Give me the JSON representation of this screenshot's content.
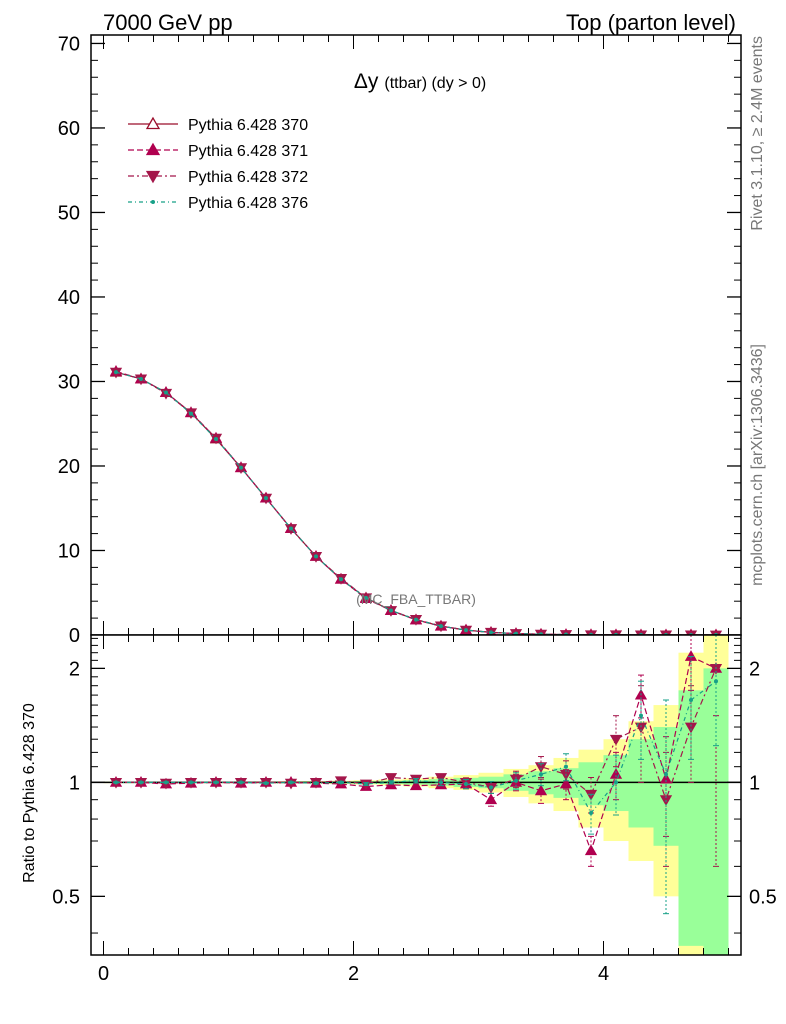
{
  "header": {
    "left": "7000 GeV pp",
    "right": "Top (parton level)"
  },
  "side": {
    "rivet": "Rivet 3.1.10, ≥ 2.4M events",
    "mcplots": "mcplots.cern.ch [arXiv:1306.3436]"
  },
  "plot": {
    "title_main": "Δy",
    "title_sub": "(ttbar) (dy > 0)",
    "watermark": "(MC_FBA_TTBAR)"
  },
  "colors": {
    "s370": "#9b0d2b",
    "s371": "#b0004f",
    "s372": "#a4164a",
    "s376": "#17a088",
    "band_yellow": "#ffff99",
    "band_green": "#99ff99"
  },
  "chart_data": [
    {
      "type": "line",
      "panel": "main",
      "xlim": [
        -0.1,
        5.1
      ],
      "ylim": [
        0,
        71
      ],
      "yticks": [
        0,
        10,
        20,
        30,
        40,
        50,
        60,
        70
      ],
      "ytick_labels": [
        "0",
        "10",
        "20",
        "30",
        "40",
        "50",
        "60",
        "70"
      ],
      "x": [
        0.1,
        0.3,
        0.5,
        0.7,
        0.9,
        1.1,
        1.3,
        1.5,
        1.7,
        1.9,
        2.1,
        2.3,
        2.5,
        2.7,
        2.9,
        3.1,
        3.3,
        3.5,
        3.7,
        3.9,
        4.1,
        4.3,
        4.5,
        4.7,
        4.9
      ],
      "series": [
        {
          "name": "Pythia 6.428 370",
          "marker": "triangle-up-open",
          "dash": "solid",
          "values": [
            31.1,
            30.3,
            28.7,
            26.3,
            23.2,
            19.8,
            16.2,
            12.6,
            9.3,
            6.6,
            4.4,
            2.9,
            1.8,
            1.05,
            0.58,
            0.32,
            0.17,
            0.09,
            0.05,
            0.03,
            0.015,
            0.008,
            0.005,
            0.003,
            0.002
          ]
        },
        {
          "name": "Pythia 6.428 371",
          "marker": "triangle-up-filled",
          "dash": "dashed",
          "values": [
            31.2,
            30.3,
            28.7,
            26.3,
            23.3,
            19.8,
            16.2,
            12.6,
            9.3,
            6.6,
            4.3,
            2.9,
            1.78,
            1.04,
            0.58,
            0.29,
            0.17,
            0.086,
            0.05,
            0.02,
            0.016,
            0.013,
            0.005,
            0.007,
            0.004
          ]
        },
        {
          "name": "Pythia 6.428 372",
          "marker": "triangle-down-filled",
          "dash": "dashdot",
          "values": [
            31.1,
            30.3,
            28.6,
            26.3,
            23.3,
            19.8,
            16.2,
            12.6,
            9.3,
            6.7,
            4.4,
            2.9,
            1.85,
            1.07,
            0.58,
            0.32,
            0.17,
            0.1,
            0.05,
            0.028,
            0.02,
            0.011,
            0.005,
            0.006,
            0.004
          ]
        },
        {
          "name": "Pythia 6.428 376",
          "marker": "dot",
          "dash": "dashdotted",
          "values": [
            31.1,
            30.3,
            28.7,
            26.2,
            23.2,
            19.8,
            16.2,
            12.6,
            9.3,
            6.6,
            4.4,
            2.9,
            1.82,
            1.05,
            0.58,
            0.31,
            0.17,
            0.095,
            0.055,
            0.025,
            0.014,
            0.012,
            0.005,
            0.005,
            0.004
          ]
        }
      ]
    },
    {
      "type": "line",
      "panel": "ratio",
      "ylabel": "Ratio to Pythia 6.428 370",
      "xlim": [
        -0.1,
        5.1
      ],
      "ylim": [
        0.35,
        2.45
      ],
      "scale": "log",
      "xticks": [
        0,
        2,
        4
      ],
      "xtick_labels": [
        "0",
        "2",
        "4"
      ],
      "yticks": [
        0.5,
        1,
        2
      ],
      "ytick_labels": [
        "0.5",
        "1",
        "2"
      ],
      "x": [
        0.1,
        0.3,
        0.5,
        0.7,
        0.9,
        1.1,
        1.3,
        1.5,
        1.7,
        1.9,
        2.1,
        2.3,
        2.5,
        2.7,
        2.9,
        3.1,
        3.3,
        3.5,
        3.7,
        3.9,
        4.1,
        4.3,
        4.5,
        4.7,
        4.9
      ],
      "bands": {
        "edges": [
          0.0,
          0.2,
          0.4,
          0.6,
          0.8,
          1.0,
          1.2,
          1.4,
          1.6,
          1.8,
          2.0,
          2.2,
          2.4,
          2.6,
          2.8,
          3.0,
          3.2,
          3.4,
          3.6,
          3.8,
          4.0,
          4.2,
          4.4,
          4.6,
          4.8,
          5.0
        ],
        "yellow_lo": [
          0.995,
          0.995,
          0.995,
          0.995,
          0.995,
          0.995,
          0.994,
          0.993,
          0.992,
          0.99,
          0.987,
          0.982,
          0.975,
          0.965,
          0.955,
          0.94,
          0.915,
          0.88,
          0.84,
          0.76,
          0.7,
          0.62,
          0.5,
          0.35,
          0.35
        ],
        "yellow_hi": [
          1.005,
          1.005,
          1.005,
          1.005,
          1.005,
          1.005,
          1.006,
          1.007,
          1.008,
          1.01,
          1.013,
          1.018,
          1.025,
          1.035,
          1.045,
          1.06,
          1.085,
          1.11,
          1.16,
          1.22,
          1.3,
          1.45,
          1.6,
          2.2,
          2.45
        ],
        "green_lo": [
          0.997,
          0.997,
          0.997,
          0.997,
          0.997,
          0.997,
          0.996,
          0.996,
          0.995,
          0.994,
          0.992,
          0.99,
          0.986,
          0.98,
          0.972,
          0.965,
          0.95,
          0.93,
          0.91,
          0.87,
          0.84,
          0.76,
          0.68,
          0.37,
          0.35
        ],
        "green_hi": [
          1.003,
          1.003,
          1.003,
          1.003,
          1.003,
          1.003,
          1.004,
          1.004,
          1.005,
          1.006,
          1.008,
          1.01,
          1.014,
          1.02,
          1.028,
          1.035,
          1.05,
          1.07,
          1.09,
          1.13,
          1.18,
          1.3,
          1.4,
          1.75,
          2.0
        ]
      },
      "series": [
        {
          "name": "Pythia 6.428 371",
          "marker": "triangle-up-filled",
          "dash": "dashed",
          "values": [
            1.0,
            1.0,
            0.99,
            0.995,
            1.0,
            0.995,
            1.0,
            1.0,
            0.995,
            0.99,
            0.975,
            0.985,
            0.98,
            0.985,
            0.99,
            0.9,
            1.0,
            0.95,
            0.99,
            0.66,
            1.05,
            1.7,
            1.02,
            2.15,
            2.0
          ],
          "err": [
            0.003,
            0.003,
            0.003,
            0.003,
            0.003,
            0.003,
            0.004,
            0.004,
            0.005,
            0.006,
            0.008,
            0.01,
            0.014,
            0.02,
            0.028,
            0.035,
            0.05,
            0.07,
            0.09,
            0.06,
            0.15,
            0.22,
            0.3,
            0.4,
            0.5
          ]
        },
        {
          "name": "Pythia 6.428 372",
          "marker": "triangle-down-filled",
          "dash": "dashdot",
          "values": [
            1.0,
            1.0,
            0.995,
            1.0,
            1.0,
            1.0,
            1.0,
            0.995,
            1.0,
            1.01,
            0.99,
            1.03,
            1.02,
            1.03,
            1.0,
            0.97,
            1.02,
            1.1,
            1.05,
            0.93,
            1.3,
            1.4,
            0.9,
            1.4,
            2.0
          ],
          "err": [
            0.003,
            0.003,
            0.003,
            0.003,
            0.003,
            0.003,
            0.004,
            0.004,
            0.005,
            0.006,
            0.008,
            0.01,
            0.014,
            0.02,
            0.028,
            0.035,
            0.05,
            0.07,
            0.09,
            0.1,
            0.2,
            0.4,
            0.3,
            0.4,
            1.4
          ]
        },
        {
          "name": "Pythia 6.428 376",
          "marker": "dot",
          "dash": "dashdotted",
          "values": [
            1.0,
            1.0,
            1.0,
            1.0,
            1.0,
            1.0,
            0.995,
            1.0,
            0.995,
            1.0,
            0.99,
            1.0,
            1.01,
            1.0,
            0.99,
            0.97,
            1.01,
            1.05,
            1.1,
            0.83,
            1.0,
            1.5,
            1.05,
            1.65,
            1.85
          ],
          "err": [
            0.003,
            0.003,
            0.003,
            0.003,
            0.003,
            0.003,
            0.004,
            0.004,
            0.005,
            0.006,
            0.008,
            0.01,
            0.014,
            0.02,
            0.028,
            0.035,
            0.05,
            0.07,
            0.09,
            0.1,
            0.18,
            0.35,
            0.6,
            0.5,
            0.6
          ]
        }
      ]
    }
  ]
}
